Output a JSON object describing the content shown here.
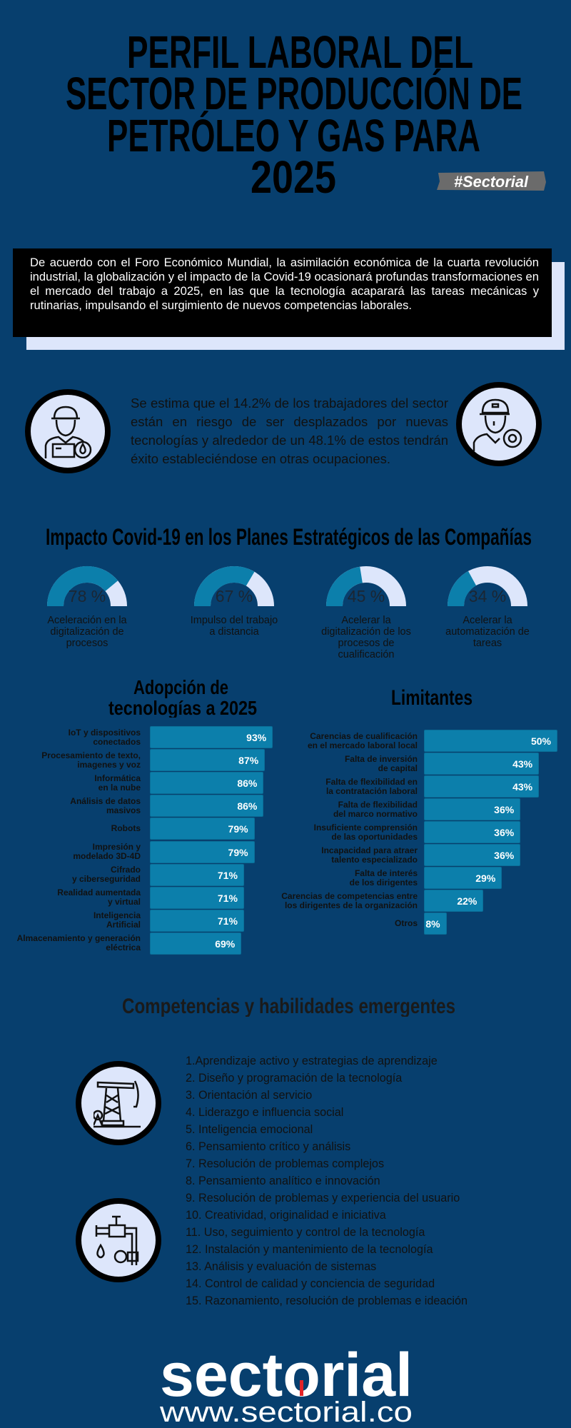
{
  "header": {
    "title_lines": [
      "PERFIL LABORAL DEL",
      "SECTOR DE PRODUCCIÓN DE",
      "PETRÓLEO Y GAS PARA",
      "2025"
    ],
    "hashtag": "#Sectorial"
  },
  "intro": {
    "text": "De acuerdo con el Foro Económico Mundial, la asimilación económica de la cuarta revolución industrial, la globalización y el impacto de la Covid-19 ocasionará profundas transformaciones en el mercado del trabajo a 2025, en las que la tecnología acaparará las tareas mecánicas y rutinarias, impulsando el surgimiento de nuevos competencias laborales."
  },
  "risk": {
    "text": "Se estima que el 14.2% de los trabajadores del sector están en riesgo de ser desplazados por nuevas tecnologías y alrededor de un 48.1% de estos tendrán éxito estableciéndose en otras ocupaciones.",
    "left_icon": "oil-worker-icon",
    "right_icon": "technician-gear-icon"
  },
  "colors": {
    "background": "#073f6e",
    "bar": "#0c7fab",
    "light": "#dde6fb",
    "logo_accent": "#e32326"
  },
  "chart_data": [
    {
      "type": "gauge",
      "title": "Impacto Covid-19 en los Planes Estratégicos de las Compañías",
      "unit": "%",
      "items": [
        {
          "value": 78,
          "display": "78 %",
          "label": "Aceleración en la digitalización de procesos"
        },
        {
          "value": 67,
          "display": "67 %",
          "label": "Impulso del trabajo a distancia"
        },
        {
          "value": 45,
          "display": "45 %",
          "label": "Acelerar la digitalización de los procesos de cualificación"
        },
        {
          "value": 34,
          "display": "34 %",
          "label": "Acelerar la automatización de tareas"
        }
      ]
    },
    {
      "type": "bar",
      "orientation": "horizontal",
      "title": "Adopción de tecnologías a 2025",
      "categories": [
        "IoT y dispositivos conectados",
        "Procesamiento de texto, imagenes y voz",
        "Informática en la nube",
        "Análisis de datos masivos",
        "Robots",
        "Impresión y modelado 3D-4D",
        "Cifrado y ciberseguridad",
        "Realidad aumentada y virtual",
        "Inteligencia Artificial",
        "Almacenamiento y generación eléctrica"
      ],
      "values": [
        93,
        87,
        86,
        86,
        79,
        79,
        71,
        71,
        71,
        69
      ],
      "value_labels": [
        "93%",
        "87%",
        "86%",
        "86%",
        "79%",
        "79%",
        "71%",
        "71%",
        "71%",
        "69%"
      ]
    },
    {
      "type": "bar",
      "orientation": "horizontal",
      "title": "Limitantes",
      "categories": [
        "Carencias de cualificación en el mercado laboral local",
        "Falta de inversión de capital",
        "Falta de flexibilidad en la contratación laboral",
        "Falta de flexibilidad del marco normativo",
        "Insuficiente comprensión de las oportunidades",
        "Incapacidad para atraer talento especializado",
        "Falta de interés de los dirigentes",
        "Carencias de competencias entre los dirigentes de la organización",
        "Otros"
      ],
      "values": [
        50,
        43,
        43,
        36,
        36,
        36,
        29,
        22,
        8
      ],
      "value_labels": [
        "50%",
        "43%",
        "43%",
        "36%",
        "36%",
        "36%",
        "29%",
        "22%",
        "8%"
      ]
    }
  ],
  "adoption_label_lines": [
    [
      "IoT y dispositivos",
      "conectados"
    ],
    [
      "Procesamiento de texto,",
      "imagenes y voz"
    ],
    [
      "Informática",
      "en la nube"
    ],
    [
      "Análisis de datos",
      "masivos"
    ],
    [
      "Robots"
    ],
    [
      "Impresión y",
      "modelado 3D-4D"
    ],
    [
      "Cifrado",
      "y ciberseguridad"
    ],
    [
      "Realidad aumentada",
      "y virtual"
    ],
    [
      "Inteligencia",
      "Artificial"
    ],
    [
      "Almacenamiento y generación",
      "eléctrica"
    ]
  ],
  "limit_label_lines": [
    [
      "Carencias de cualificación",
      "en el mercado laboral local"
    ],
    [
      "Falta de inversión",
      "de capital"
    ],
    [
      "Falta de flexibilidad en",
      "la contratación laboral"
    ],
    [
      "Falta de flexibilidad",
      "del marco normativo"
    ],
    [
      "Insuficiente comprensión",
      "de las oportunidades"
    ],
    [
      "Incapacidad para atraer",
      "talento especializado"
    ],
    [
      "Falta de interés",
      "de los dirigentes"
    ],
    [
      "Carencias de competencias entre",
      "los dirigentes de la organización"
    ],
    [
      "Otros"
    ]
  ],
  "adoption_title_lines": [
    "Adopción de",
    "tecnologías a 2025"
  ],
  "skills": {
    "title": "Competencias y habilidades emergentes",
    "items": [
      "1.Aprendizaje activo y estrategias de aprendizaje",
      "2. Diseño y programación de la tecnología",
      "3. Orientación al servicio",
      "4. Liderazgo e influencia social",
      "5. Inteligencia emocional",
      "6. Pensamiento crítico y análisis",
      "7. Resolución de problemas complejos",
      "8. Pensamiento analítico e innovación",
      "9. Resolución de problemas y experiencia del usuario",
      "10. Creatividad, originalidad e iniciativa",
      "11. Uso, seguimiento y control de la tecnología",
      "12. Instalación y mantenimiento de la tecnología",
      "13. Análisis y evaluación de sistemas",
      "14. Control de calidad y conciencia de seguridad",
      "15. Razonamiento, resolución de problemas e ideación"
    ],
    "icons": [
      "oil-pumpjack-icon",
      "pipeline-valve-icon"
    ]
  },
  "footer": {
    "logo": "sectorial",
    "url": "www.sectorial.co"
  }
}
